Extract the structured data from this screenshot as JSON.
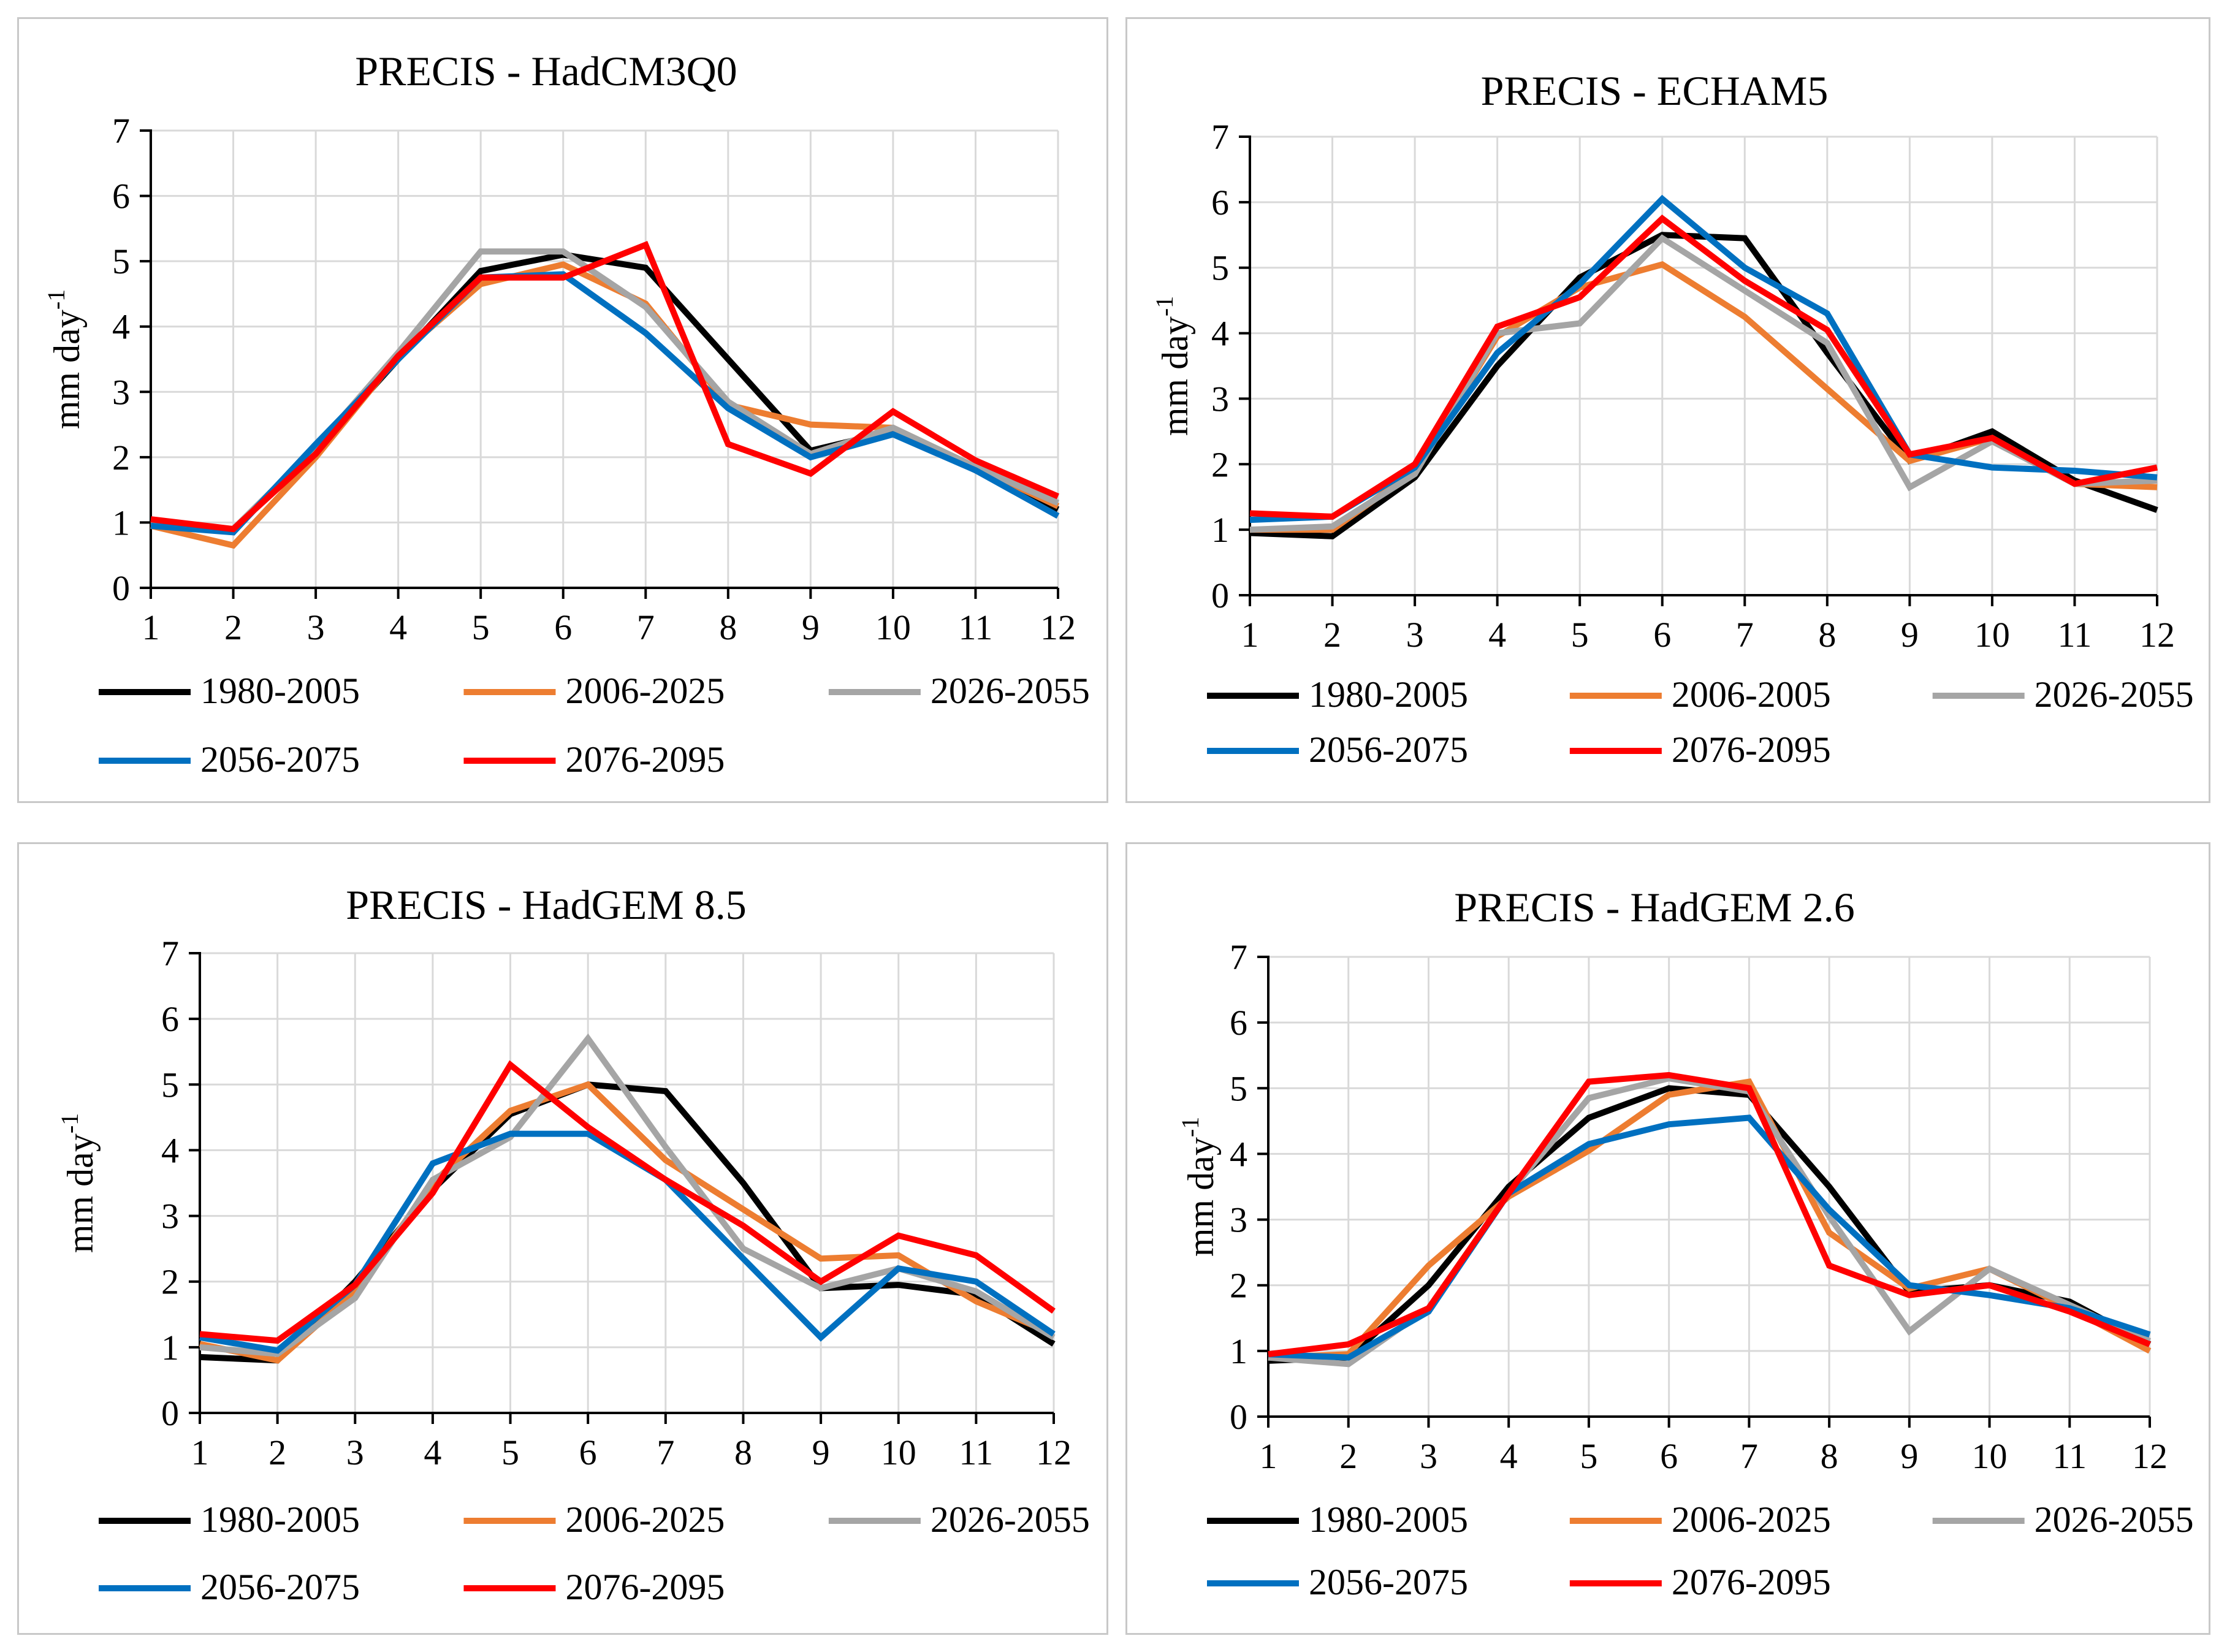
{
  "chart_data": [
    {
      "type": "line",
      "title": "PRECIS - HadCM3Q0",
      "ylabel": "mm day",
      "ylabel_sup": "-1",
      "xlabel": "",
      "x": [
        1,
        2,
        3,
        4,
        5,
        6,
        7,
        8,
        9,
        10,
        11,
        12
      ],
      "ylim": [
        0,
        7
      ],
      "yticks": [
        0,
        1,
        2,
        3,
        4,
        5,
        6,
        7
      ],
      "grid": true,
      "legend": "bottom",
      "series": [
        {
          "name": "1980-2005",
          "color": "#000000",
          "values": [
            1.0,
            0.9,
            2.1,
            3.5,
            4.85,
            5.1,
            4.9,
            3.5,
            2.1,
            2.4,
            1.8,
            1.2
          ]
        },
        {
          "name": "2006-2025",
          "color": "#ed7d31",
          "values": [
            0.95,
            0.65,
            2.0,
            3.55,
            4.65,
            4.95,
            4.35,
            2.8,
            2.5,
            2.45,
            1.85,
            1.25
          ]
        },
        {
          "name": "2026-2055",
          "color": "#a5a5a5",
          "values": [
            1.0,
            0.9,
            2.15,
            3.6,
            5.15,
            5.15,
            4.3,
            2.85,
            2.05,
            2.45,
            1.85,
            1.3
          ]
        },
        {
          "name": "2056-2075",
          "color": "#0070c0",
          "values": [
            0.95,
            0.85,
            2.2,
            3.5,
            4.75,
            4.8,
            3.9,
            2.75,
            2.0,
            2.35,
            1.8,
            1.1
          ]
        },
        {
          "name": "2076-2095",
          "color": "#ff0000",
          "values": [
            1.05,
            0.9,
            2.05,
            3.55,
            4.75,
            4.75,
            5.25,
            2.2,
            1.75,
            2.7,
            1.95,
            1.4
          ]
        }
      ]
    },
    {
      "type": "line",
      "title": "PRECIS - ECHAM5",
      "ylabel": "mm day",
      "ylabel_sup": "-1",
      "xlabel": "",
      "x": [
        1,
        2,
        3,
        4,
        5,
        6,
        7,
        8,
        9,
        10,
        11,
        12
      ],
      "ylim": [
        0,
        7
      ],
      "yticks": [
        0,
        1,
        2,
        3,
        4,
        5,
        6,
        7
      ],
      "grid": true,
      "legend": "bottom",
      "series": [
        {
          "name": "1980-2005",
          "color": "#000000",
          "values": [
            0.95,
            0.9,
            1.8,
            3.5,
            4.85,
            5.5,
            5.45,
            3.7,
            2.05,
            2.5,
            1.75,
            1.3
          ]
        },
        {
          "name": "2006-2005",
          "color": "#ed7d31",
          "values": [
            1.0,
            1.0,
            1.9,
            3.95,
            4.7,
            5.05,
            4.25,
            3.15,
            2.05,
            2.4,
            1.7,
            1.65
          ]
        },
        {
          "name": "2026-2055",
          "color": "#a5a5a5",
          "values": [
            1.0,
            1.05,
            1.85,
            4.0,
            4.15,
            5.45,
            4.65,
            3.85,
            1.65,
            2.35,
            1.7,
            1.75
          ]
        },
        {
          "name": "2056-2075",
          "color": "#0070c0",
          "values": [
            1.15,
            1.2,
            1.95,
            3.7,
            4.75,
            6.05,
            5.0,
            4.3,
            2.15,
            1.95,
            1.9,
            1.8
          ]
        },
        {
          "name": "2076-2095",
          "color": "#ff0000",
          "values": [
            1.25,
            1.2,
            2.0,
            4.1,
            4.55,
            5.75,
            4.8,
            4.05,
            2.15,
            2.4,
            1.7,
            1.95
          ]
        }
      ]
    },
    {
      "type": "line",
      "title": "PRECIS - HadGEM 8.5",
      "ylabel": "mm day",
      "ylabel_sup": "-1",
      "xlabel": "",
      "x": [
        1,
        2,
        3,
        4,
        5,
        6,
        7,
        8,
        9,
        10,
        11,
        12
      ],
      "ylim": [
        0,
        7
      ],
      "yticks": [
        0,
        1,
        2,
        3,
        4,
        5,
        6,
        7
      ],
      "grid": true,
      "legend": "bottom",
      "series": [
        {
          "name": "1980-2005",
          "color": "#000000",
          "values": [
            0.85,
            0.8,
            2.0,
            3.4,
            4.55,
            5.0,
            4.9,
            3.5,
            1.9,
            1.95,
            1.8,
            1.05
          ]
        },
        {
          "name": "2006-2025",
          "color": "#ed7d31",
          "values": [
            1.05,
            0.8,
            1.85,
            3.5,
            4.6,
            5.0,
            3.85,
            3.1,
            2.35,
            2.4,
            1.7,
            1.2
          ]
        },
        {
          "name": "2026-2055",
          "color": "#a5a5a5",
          "values": [
            1.0,
            0.9,
            1.75,
            3.55,
            4.2,
            5.7,
            4.05,
            2.5,
            1.9,
            2.2,
            1.85,
            1.15
          ]
        },
        {
          "name": "2056-2075",
          "color": "#0070c0",
          "values": [
            1.15,
            0.95,
            1.95,
            3.8,
            4.25,
            4.25,
            3.55,
            2.35,
            1.15,
            2.2,
            2.0,
            1.2
          ]
        },
        {
          "name": "2076-2095",
          "color": "#ff0000",
          "values": [
            1.2,
            1.1,
            1.95,
            3.35,
            5.3,
            4.35,
            3.55,
            2.85,
            2.0,
            2.7,
            2.4,
            1.55
          ]
        }
      ]
    },
    {
      "type": "line",
      "title": "PRECIS - HadGEM 2.6",
      "ylabel": "mm day",
      "ylabel_sup": "-1",
      "xlabel": "",
      "x": [
        1,
        2,
        3,
        4,
        5,
        6,
        7,
        8,
        9,
        10,
        11,
        12
      ],
      "ylim": [
        0,
        7
      ],
      "yticks": [
        0,
        1,
        2,
        3,
        4,
        5,
        6,
        7
      ],
      "grid": true,
      "legend": "bottom",
      "series": [
        {
          "name": "1980-2005",
          "color": "#000000",
          "values": [
            0.85,
            0.9,
            2.0,
            3.5,
            4.55,
            5.0,
            4.9,
            3.5,
            1.9,
            2.0,
            1.75,
            1.1
          ]
        },
        {
          "name": "2006-2025",
          "color": "#ed7d31",
          "values": [
            0.9,
            0.95,
            2.3,
            3.35,
            4.05,
            4.9,
            5.1,
            2.8,
            1.95,
            2.25,
            1.65,
            1.0
          ]
        },
        {
          "name": "2026-2055",
          "color": "#a5a5a5",
          "values": [
            0.9,
            0.8,
            1.65,
            3.4,
            4.85,
            5.15,
            4.95,
            3.05,
            1.3,
            2.25,
            1.7,
            1.15
          ]
        },
        {
          "name": "2056-2075",
          "color": "#0070c0",
          "values": [
            0.95,
            0.9,
            1.6,
            3.4,
            4.15,
            4.45,
            4.55,
            3.15,
            2.0,
            1.85,
            1.65,
            1.25
          ]
        },
        {
          "name": "2076-2095",
          "color": "#ff0000",
          "values": [
            0.95,
            1.1,
            1.65,
            3.4,
            5.1,
            5.2,
            5.0,
            2.3,
            1.85,
            2.0,
            1.6,
            1.1
          ]
        }
      ]
    }
  ]
}
